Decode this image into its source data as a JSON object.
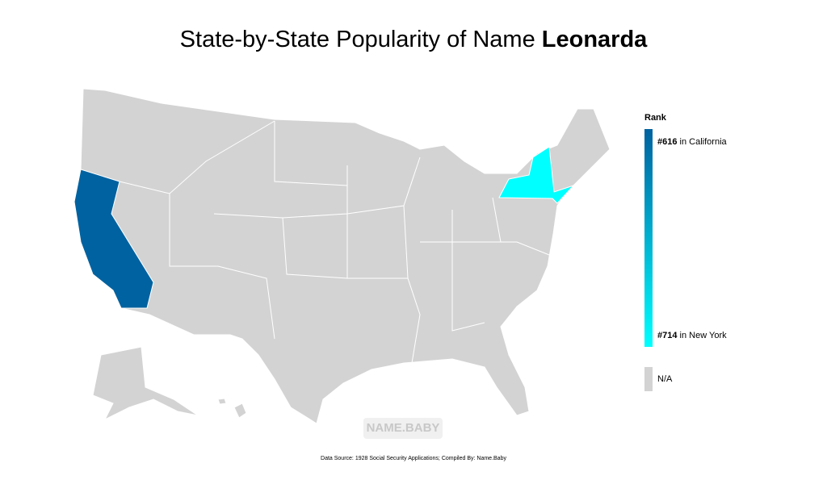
{
  "header": {
    "title": "State-by-State Popularity of Name",
    "name": "Leonarda"
  },
  "legend": {
    "title": "Rank",
    "entries": [
      {
        "rank": 616,
        "rank_label": "#616",
        "text": "in California",
        "color": "#0062a0"
      },
      {
        "rank": 714,
        "rank_label": "#714",
        "text": "in New York",
        "color": "#00ffff"
      }
    ],
    "na": "N/A",
    "na_color": "#d3d3d3"
  },
  "watermark": "NAME.BABY",
  "footer": "Data Source: 1928 Social Security Applications; Compiled By: Name.Baby"
}
